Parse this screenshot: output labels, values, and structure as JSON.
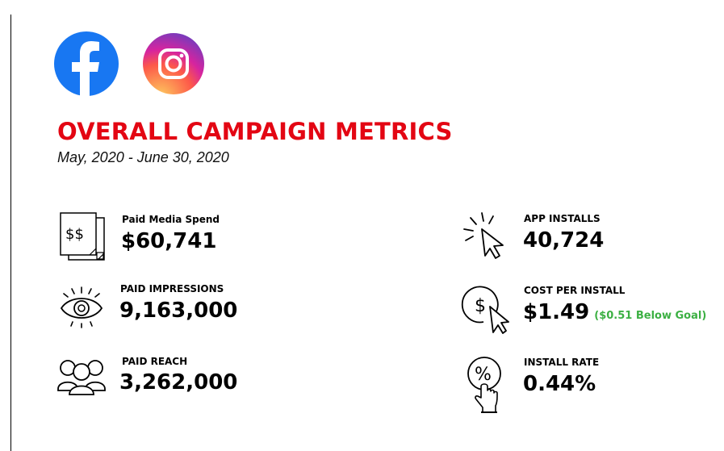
{
  "header": {
    "title": "OVERALL CAMPAIGN METRICS",
    "date_range": "May, 2020 - June 30, 2020"
  },
  "logos": {
    "facebook": {
      "icon": "facebook-logo",
      "color": "#1877f2"
    },
    "instagram": {
      "icon": "instagram-logo",
      "gradient": [
        "#fcaf45",
        "#e1306c",
        "#833ab4"
      ]
    }
  },
  "metrics": {
    "paid_media_spend": {
      "label": "Paid Media Spend",
      "value": "$60,741",
      "icon": "documents-dollar-icon"
    },
    "paid_impressions": {
      "label": "PAID IMPRESSIONS",
      "value": "9,163,000",
      "icon": "eye-icon"
    },
    "paid_reach": {
      "label": "PAID REACH",
      "value": "3,262,000",
      "icon": "people-group-icon"
    },
    "app_installs": {
      "label": "APP INSTALLS",
      "value": "40,724",
      "icon": "cursor-click-icon"
    },
    "cost_per_install": {
      "label": "COST PER INSTALL",
      "value": "$1.49",
      "note": "($0.51 Below Goal)",
      "icon": "dollar-cursor-icon"
    },
    "install_rate": {
      "label": "INSTALL RATE",
      "value": "0.44%",
      "icon": "percent-tap-icon"
    }
  },
  "colors": {
    "title": "#e30613",
    "note": "#3cb043"
  }
}
